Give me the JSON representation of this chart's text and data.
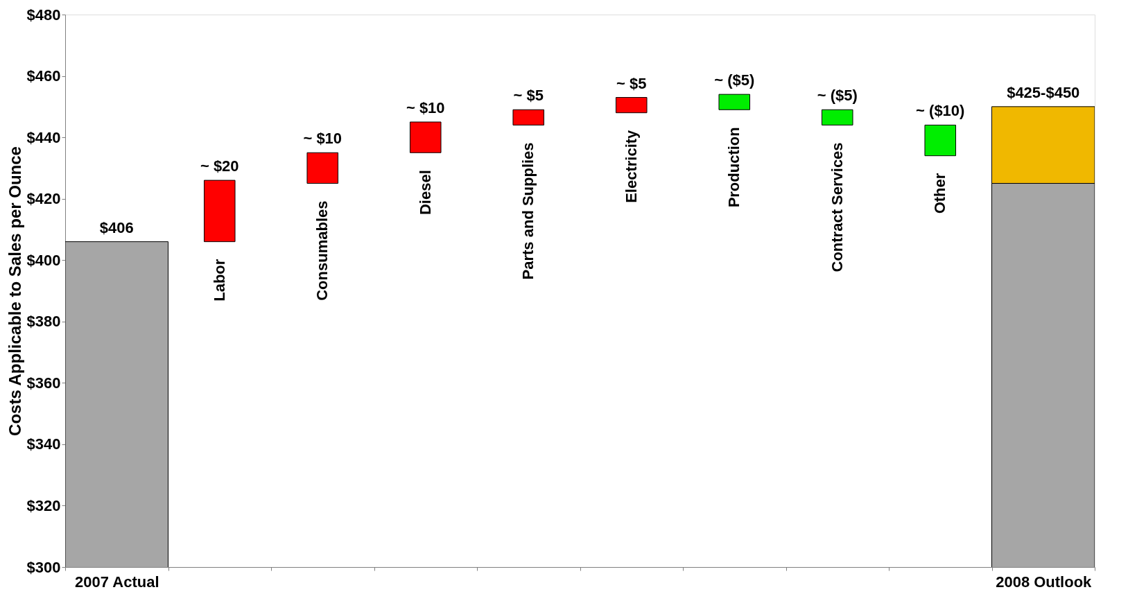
{
  "chart_data": {
    "type": "bar",
    "categories": [
      "2007 Actual",
      "Labor",
      "Consumables",
      "Diesel",
      "Parts and Supplies",
      "Electricity",
      "Production",
      "Contract Services",
      "Other",
      "2008 Outlook"
    ],
    "ylabel": "Costs Applicable to Sales per Ounce",
    "series": [
      {
        "color": "#a6a6a6",
        "values": [
          406,
          null,
          null,
          null,
          null,
          null,
          null,
          null,
          null,
          425
        ],
        "value_labels": [
          "$406",
          null,
          null,
          null,
          null,
          null,
          null,
          null,
          null,
          null
        ]
      },
      {
        "color": "#ff0000",
        "values": [
          null,
          20,
          10,
          10,
          5,
          5,
          null,
          null,
          null,
          null
        ],
        "base": [
          null,
          406,
          425,
          435,
          444,
          448,
          null,
          null,
          null,
          null
        ],
        "value_labels": [
          null,
          "~ $20",
          "~ $10",
          "~ $10",
          "~ $5",
          "~ $5",
          null,
          null,
          null,
          null
        ]
      },
      {
        "color": "#00ee00",
        "values": [
          null,
          null,
          null,
          null,
          null,
          null,
          -5,
          -5,
          -10,
          null
        ],
        "base": [
          null,
          null,
          null,
          null,
          null,
          null,
          454,
          449,
          444,
          null
        ],
        "value_labels": [
          null,
          null,
          null,
          null,
          null,
          null,
          "~ ($5)",
          "~ ($5)",
          "~ ($10)",
          null
        ]
      },
      {
        "color": "#f0b800",
        "values": [
          null,
          null,
          null,
          null,
          null,
          null,
          null,
          null,
          null,
          25
        ],
        "base": [
          null,
          null,
          null,
          null,
          null,
          null,
          null,
          null,
          null,
          425
        ],
        "value_labels": [
          null,
          null,
          null,
          null,
          null,
          null,
          null,
          null,
          null,
          "$425-$450"
        ]
      }
    ],
    "ylim": [
      300,
      480
    ],
    "yticks": [
      {
        "value": 300,
        "label": "$300"
      },
      {
        "value": 320,
        "label": "$320"
      },
      {
        "value": 340,
        "label": "$340"
      },
      {
        "value": 360,
        "label": "$360"
      },
      {
        "value": 380,
        "label": "$380"
      },
      {
        "value": 400,
        "label": "$400"
      },
      {
        "value": 420,
        "label": "$420"
      },
      {
        "value": 440,
        "label": "$440"
      },
      {
        "value": 460,
        "label": "$460"
      },
      {
        "value": 480,
        "label": "$480"
      }
    ],
    "grid": false
  }
}
